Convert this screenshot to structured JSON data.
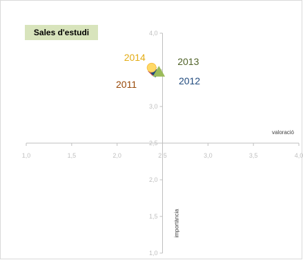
{
  "chart_data": {
    "type": "scatter",
    "title": "Sales d'estudi",
    "xlabel": "valoració",
    "ylabel": "importància",
    "xlim": [
      1.0,
      4.0
    ],
    "ylim": [
      1.0,
      4.0
    ],
    "x_cross": 2.5,
    "y_cross": 2.5,
    "x_ticks": [
      "1,0",
      "1,5",
      "2,0",
      "2,5",
      "3,0",
      "3,5",
      "4,0"
    ],
    "y_ticks": [
      "1,0",
      "1,5",
      "2,0",
      "2,5",
      "3,0",
      "3,5",
      "4,0"
    ],
    "grid": false,
    "series": [
      {
        "name": "2011",
        "x": 2.39,
        "y": 3.48,
        "marker": "diamond",
        "color": "#c0504d",
        "label_color": "#984807"
      },
      {
        "name": "2012",
        "x": 2.42,
        "y": 3.46,
        "marker": "diamond",
        "color": "#1f497d",
        "label_color": "#1f497d"
      },
      {
        "name": "2013",
        "x": 2.46,
        "y": 3.46,
        "marker": "triangle",
        "color": "#9bbb59",
        "label_color": "#4f6228"
      },
      {
        "name": "2014",
        "x": 2.38,
        "y": 3.53,
        "marker": "circle",
        "color": "#ffd966",
        "label_color": "#e3ac15"
      }
    ]
  }
}
